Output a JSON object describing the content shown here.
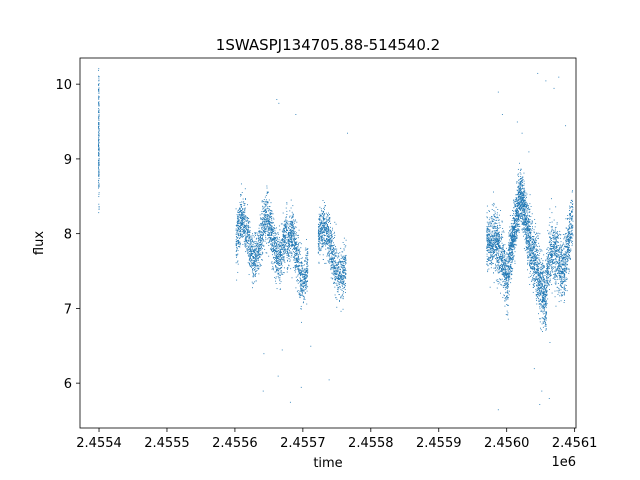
{
  "chart_data": {
    "type": "scatter",
    "title": "1SWASPJ134705.88-514540.2",
    "xlabel": "time",
    "ylabel": "flux",
    "x_offset_label": "1e6",
    "xlim": [
      2455372,
      2456102
    ],
    "ylim": [
      5.4,
      10.35
    ],
    "x_ticks": [
      2455400,
      2455500,
      2455600,
      2455700,
      2455800,
      2455900,
      2456000,
      2456100
    ],
    "x_tick_labels": [
      "2.4554",
      "2.4555",
      "2.4556",
      "2.4557",
      "2.4558",
      "2.4559",
      "2.4560",
      "2.4561"
    ],
    "y_ticks": [
      6,
      7,
      8,
      9,
      10
    ],
    "y_tick_labels": [
      "6",
      "7",
      "8",
      "9",
      "10"
    ],
    "grid": false,
    "legend": "none",
    "marker_color": "#1f77b4",
    "series": [
      {
        "segments": [
          {
            "x_start": 2455398.5,
            "x_end": 2455399.5,
            "count": 180,
            "mean": [
              9.3,
              9.3
            ],
            "amp": 0.0,
            "period": 1,
            "spread": 0.42
          },
          {
            "x_start": 2455601,
            "x_end": 2455676,
            "count": 1700,
            "mean": [
              7.9,
              7.95
            ],
            "amp": 0.28,
            "period": 36,
            "spread": 0.16
          },
          {
            "x_start": 2455676,
            "x_end": 2455707,
            "count": 700,
            "mean": [
              7.8,
              7.55
            ],
            "amp": 0.25,
            "period": 30,
            "spread": 0.17
          },
          {
            "x_start": 2455722,
            "x_end": 2455763,
            "count": 900,
            "mean": [
              7.95,
              7.55
            ],
            "amp": 0.2,
            "period": 40,
            "spread": 0.16
          },
          {
            "x_start": 2455970,
            "x_end": 2456002,
            "count": 900,
            "mean": [
              7.9,
              7.35
            ],
            "amp": 0.2,
            "period": 60,
            "spread": 0.2
          },
          {
            "x_start": 2456002,
            "x_end": 2456020,
            "count": 700,
            "mean": [
              7.6,
              8.55
            ],
            "amp": 0.0,
            "period": 1,
            "spread": 0.18
          },
          {
            "x_start": 2456020,
            "x_end": 2456033,
            "count": 500,
            "mean": [
              8.55,
              7.9
            ],
            "amp": 0.0,
            "period": 1,
            "spread": 0.18
          },
          {
            "x_start": 2456033,
            "x_end": 2456058,
            "count": 800,
            "mean": [
              7.9,
              7.05
            ],
            "amp": 0.0,
            "period": 1,
            "spread": 0.22
          },
          {
            "x_start": 2456058,
            "x_end": 2456097,
            "count": 1000,
            "mean": [
              7.4,
              8.0
            ],
            "amp": 0.25,
            "period": 32,
            "spread": 0.2
          }
        ],
        "outliers": [
          [
            2455399,
            10.05
          ],
          [
            2455399,
            8.4
          ],
          [
            2455661,
            9.8
          ],
          [
            2455663,
            6.1
          ],
          [
            2455641,
            5.9
          ],
          [
            2455664,
            9.75
          ],
          [
            2455689,
            9.6
          ],
          [
            2455697,
            5.95
          ],
          [
            2455681,
            5.75
          ],
          [
            2455711,
            6.5
          ],
          [
            2455738,
            6.05
          ],
          [
            2455765,
            9.35
          ],
          [
            2455987,
            9.9
          ],
          [
            2455993,
            9.6
          ],
          [
            2455987,
            5.65
          ],
          [
            2456015,
            9.5
          ],
          [
            2456032,
            9.1
          ],
          [
            2456022,
            9.35
          ],
          [
            2456045,
            10.15
          ],
          [
            2456057,
            10.05
          ],
          [
            2456069,
            9.95
          ],
          [
            2456076,
            10.1
          ],
          [
            2456062,
            5.8
          ],
          [
            2456051,
            5.9
          ],
          [
            2456048,
            5.72
          ],
          [
            2456086,
            9.45
          ],
          [
            2456040,
            6.2
          ],
          [
            2456063,
            6.55
          ],
          [
            2455642,
            6.4
          ],
          [
            2455669,
            6.45
          ]
        ]
      }
    ]
  }
}
